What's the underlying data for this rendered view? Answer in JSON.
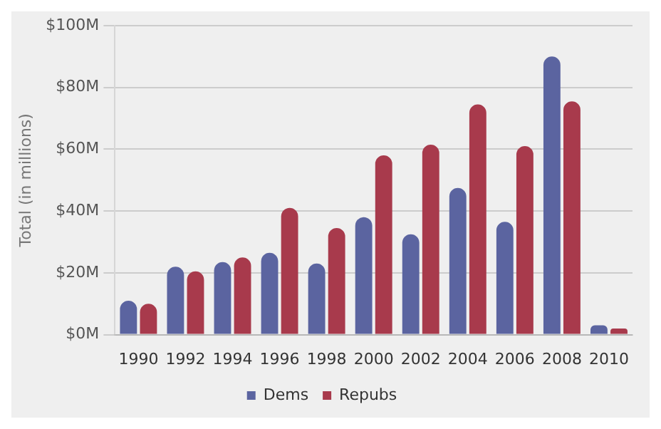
{
  "chart_data": {
    "type": "bar",
    "ylabel": "Total (in millions)",
    "categories": [
      "1990",
      "1992",
      "1994",
      "1996",
      "1998",
      "2000",
      "2002",
      "2004",
      "2006",
      "2008",
      "2010"
    ],
    "series": [
      {
        "name": "Dems",
        "color": "#5b64a0",
        "values": [
          11,
          22,
          23.5,
          26.5,
          23,
          38,
          32.5,
          47.5,
          36.5,
          90,
          3
        ]
      },
      {
        "name": "Repubs",
        "color": "#a83a4c",
        "values": [
          10,
          20.5,
          25,
          41,
          34.5,
          58,
          61.5,
          74.5,
          61,
          75.5,
          2
        ]
      }
    ],
    "ylim": [
      0,
      100
    ],
    "yticks": [
      {
        "value": 0,
        "label": "$0M"
      },
      {
        "value": 20,
        "label": "$20M"
      },
      {
        "value": 40,
        "label": "$40M"
      },
      {
        "value": 60,
        "label": "$60M"
      },
      {
        "value": 80,
        "label": "$80M"
      },
      {
        "value": 100,
        "label": "$100M"
      }
    ],
    "grid": "y",
    "legend": "bottom"
  }
}
